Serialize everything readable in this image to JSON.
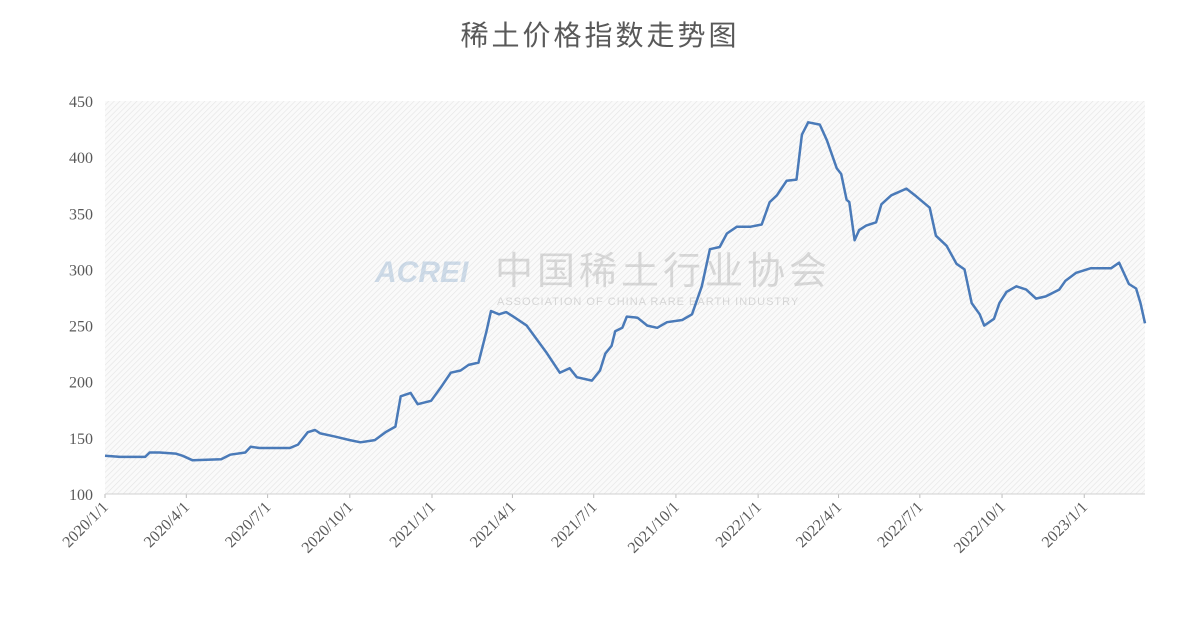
{
  "chart_data": {
    "type": "line",
    "title": "稀土价格指数走势图",
    "watermark": {
      "logo": "ACREI",
      "name": "中国稀土行业协会",
      "subtitle": "ASSOCIATION OF CHINA RARE EARTH INDUSTRY"
    },
    "color": "#4a7ab8",
    "x": [
      "2020/1/1",
      "2020/1/18",
      "2020/2/15",
      "2020/2/20",
      "2020/3/2",
      "2020/3/20",
      "2020/3/28",
      "2020/4/8",
      "2020/5/10",
      "2020/5/20",
      "2020/6/6",
      "2020/6/12",
      "2020/6/22",
      "2020/7/26",
      "2020/8/4",
      "2020/8/15",
      "2020/8/23",
      "2020/8/29",
      "2020/9/15",
      "2020/10/1",
      "2020/10/13",
      "2020/10/29",
      "2020/11/10",
      "2020/11/21",
      "2020/11/27",
      "2020/12/8",
      "2020/12/16",
      "2020/12/31",
      "2021/1/11",
      "2021/1/22",
      "2021/2/2",
      "2021/2/11",
      "2021/2/22",
      "2021/3/3",
      "2021/3/8",
      "2021/3/17",
      "2021/3/25",
      "2021/4/2",
      "2021/4/17",
      "2021/4/28",
      "2021/5/9",
      "2021/5/24",
      "2021/6/4",
      "2021/6/12",
      "2021/6/29",
      "2021/7/8",
      "2021/7/14",
      "2021/7/21",
      "2021/7/25",
      "2021/8/2",
      "2021/8/7",
      "2021/8/19",
      "2021/8/30",
      "2021/9/10",
      "2021/9/21",
      "2021/10/8",
      "2021/10/19",
      "2021/10/30",
      "2021/11/8",
      "2021/11/19",
      "2021/11/27",
      "2021/12/8",
      "2021/12/23",
      "2022/1/5",
      "2022/1/14",
      "2022/1/22",
      "2022/1/27",
      "2022/2/2",
      "2022/2/13",
      "2022/2/19",
      "2022/2/26",
      "2022/3/11",
      "2022/3/19",
      "2022/3/30",
      "2022/4/4",
      "2022/4/10",
      "2022/4/13",
      "2022/4/19",
      "2022/4/24",
      "2022/5/2",
      "2022/5/13",
      "2022/5/19",
      "2022/5/30",
      "2022/6/16",
      "2022/6/27",
      "2022/7/12",
      "2022/7/19",
      "2022/7/31",
      "2022/8/11",
      "2022/8/20",
      "2022/8/28",
      "2022/9/6",
      "2022/9/11",
      "2022/9/22",
      "2022/9/28",
      "2022/10/6",
      "2022/10/17",
      "2022/10/28",
      "2022/11/8",
      "2022/11/19",
      "2022/12/4",
      "2022/12/11",
      "2022/12/23",
      "2023/1/8",
      "2023/1/31",
      "2023/2/9",
      "2023/2/20",
      "2023/2/28",
      "2023/3/5",
      "2023/3/10"
    ],
    "values": [
      134,
      133,
      133,
      137,
      137,
      136,
      134,
      130,
      131,
      135,
      137,
      142,
      141,
      141,
      144,
      155,
      157,
      154,
      151,
      148,
      146,
      148,
      155,
      160,
      187,
      190,
      180,
      183,
      195,
      208,
      210,
      215,
      217,
      245,
      263,
      260,
      262,
      258,
      250,
      238,
      226,
      208,
      212,
      204,
      201,
      210,
      225,
      232,
      245,
      248,
      258,
      257,
      250,
      248,
      253,
      255,
      260,
      285,
      318,
      320,
      332,
      338,
      338,
      340,
      360,
      366,
      372,
      379,
      380,
      420,
      431,
      429,
      415,
      390,
      385,
      362,
      360,
      326,
      335,
      339,
      342,
      358,
      366,
      372,
      365,
      355,
      330,
      321,
      305,
      300,
      270,
      260,
      250,
      256,
      270,
      280,
      285,
      282,
      274,
      276,
      282,
      290,
      297,
      301,
      301,
      306,
      287,
      283,
      270,
      252
    ],
    "xlim": [
      "2020/1/1",
      "2023/3/10"
    ],
    "xticks": [
      "2020/1/1",
      "2020/4/1",
      "2020/7/1",
      "2020/10/1",
      "2021/1/1",
      "2021/4/1",
      "2021/7/1",
      "2021/10/1",
      "2022/1/1",
      "2022/4/1",
      "2022/7/1",
      "2022/10/1",
      "2023/1/1"
    ],
    "ylim": [
      100,
      450
    ],
    "yticks": [
      100,
      150,
      200,
      250,
      300,
      350,
      400,
      450
    ],
    "grid": false
  }
}
